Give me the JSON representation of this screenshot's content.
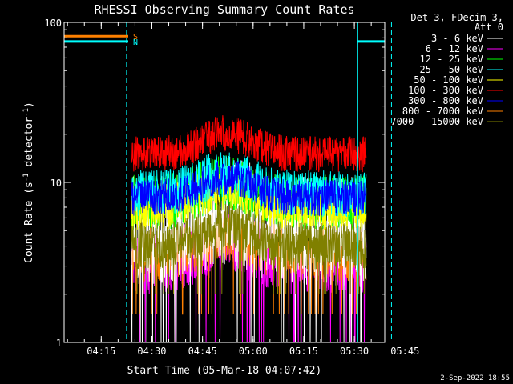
{
  "chart_data": {
    "type": "line",
    "title": "RHESSI Observing Summary Count Rates",
    "xlabel": "Start Time (05-Mar-18 04:07:42)",
    "ylabel": "Count Rate (s⁻¹ detector⁻¹)",
    "ylabel_main": "Count Rate (s",
    "ylabel_sup1": "-1",
    "ylabel_mid": " detector",
    "ylabel_sup2": "-1",
    "ylabel_end": ")",
    "y_scale": "log",
    "ylim": [
      1,
      100
    ],
    "xlim_minutes": [
      4.0,
      99.0
    ],
    "x_start": "04:07:42",
    "x_ticks": [
      {
        "label": "04:15",
        "t": 15
      },
      {
        "label": "04:30",
        "t": 30
      },
      {
        "label": "04:45",
        "t": 45
      },
      {
        "label": "05:00",
        "t": 60
      },
      {
        "label": "05:15",
        "t": 75
      },
      {
        "label": "05:30",
        "t": 90
      },
      {
        "label": "05:45",
        "t": 105
      }
    ],
    "y_ticks": [
      {
        "label": "1",
        "v": 1
      },
      {
        "label": "10",
        "v": 10
      },
      {
        "label": "100",
        "v": 100
      }
    ],
    "legend_position": "right",
    "legend_header": [
      "Det 3, FDecim 3,",
      "Att 0"
    ],
    "series": [
      {
        "name": "3 - 6 keV",
        "color": "#ffffff",
        "base": 5.0,
        "spread": 2.2,
        "floor": 1.0,
        "seed": 11
      },
      {
        "name": "6 - 12 keV",
        "color": "#ff00ff",
        "base": 3.2,
        "spread": 1.6,
        "floor": 1.0,
        "seed": 23
      },
      {
        "name": "12 - 25 keV",
        "color": "#00ff00",
        "base": 7.5,
        "spread": 1.5,
        "floor": 4.0,
        "seed": 37
      },
      {
        "name": "25 - 50 keV",
        "color": "#00ffff",
        "base": 8.5,
        "spread": 1.4,
        "floor": 5.0,
        "seed": 41
      },
      {
        "name": "50 - 100 keV",
        "color": "#ffff00",
        "base": 7.0,
        "spread": 1.4,
        "floor": 4.0,
        "seed": 53
      },
      {
        "name": "100 - 300 keV",
        "color": "#ff0000",
        "base": 15.0,
        "spread": 1.3,
        "floor": 11.0,
        "seed": 67
      },
      {
        "name": "300 - 800 keV",
        "color": "#0000ff",
        "base": 8.0,
        "spread": 1.3,
        "floor": 5.5,
        "seed": 71
      },
      {
        "name": "800 - 7000 keV",
        "color": "#ff8000",
        "base": 3.6,
        "spread": 1.5,
        "floor": 1.5,
        "seed": 83
      },
      {
        "name": "7000 - 15000 keV",
        "color": "#808000",
        "base": 4.0,
        "spread": 1.4,
        "floor": 2.0,
        "seed": 97
      }
    ],
    "data_span_minutes": [
      24.0,
      93.5
    ],
    "flags": [
      {
        "label": "S",
        "color": "#ff8000",
        "t_start": 4.0,
        "t_end": 23.0,
        "level": 82
      },
      {
        "label": "N",
        "color": "#00ffff",
        "t_start": 4.0,
        "t_end": 23.0,
        "level": 76
      },
      {
        "label": "",
        "color": "#00ffff",
        "t_start": 91.0,
        "t_end": 101.0,
        "level": 76
      }
    ],
    "solid_cyan_lines_minutes": [
      4.0,
      91.0
    ],
    "dashed_cyan_lines_minutes": [
      22.5,
      101.0
    ]
  },
  "footer_date": "2-Sep-2022 18:55"
}
